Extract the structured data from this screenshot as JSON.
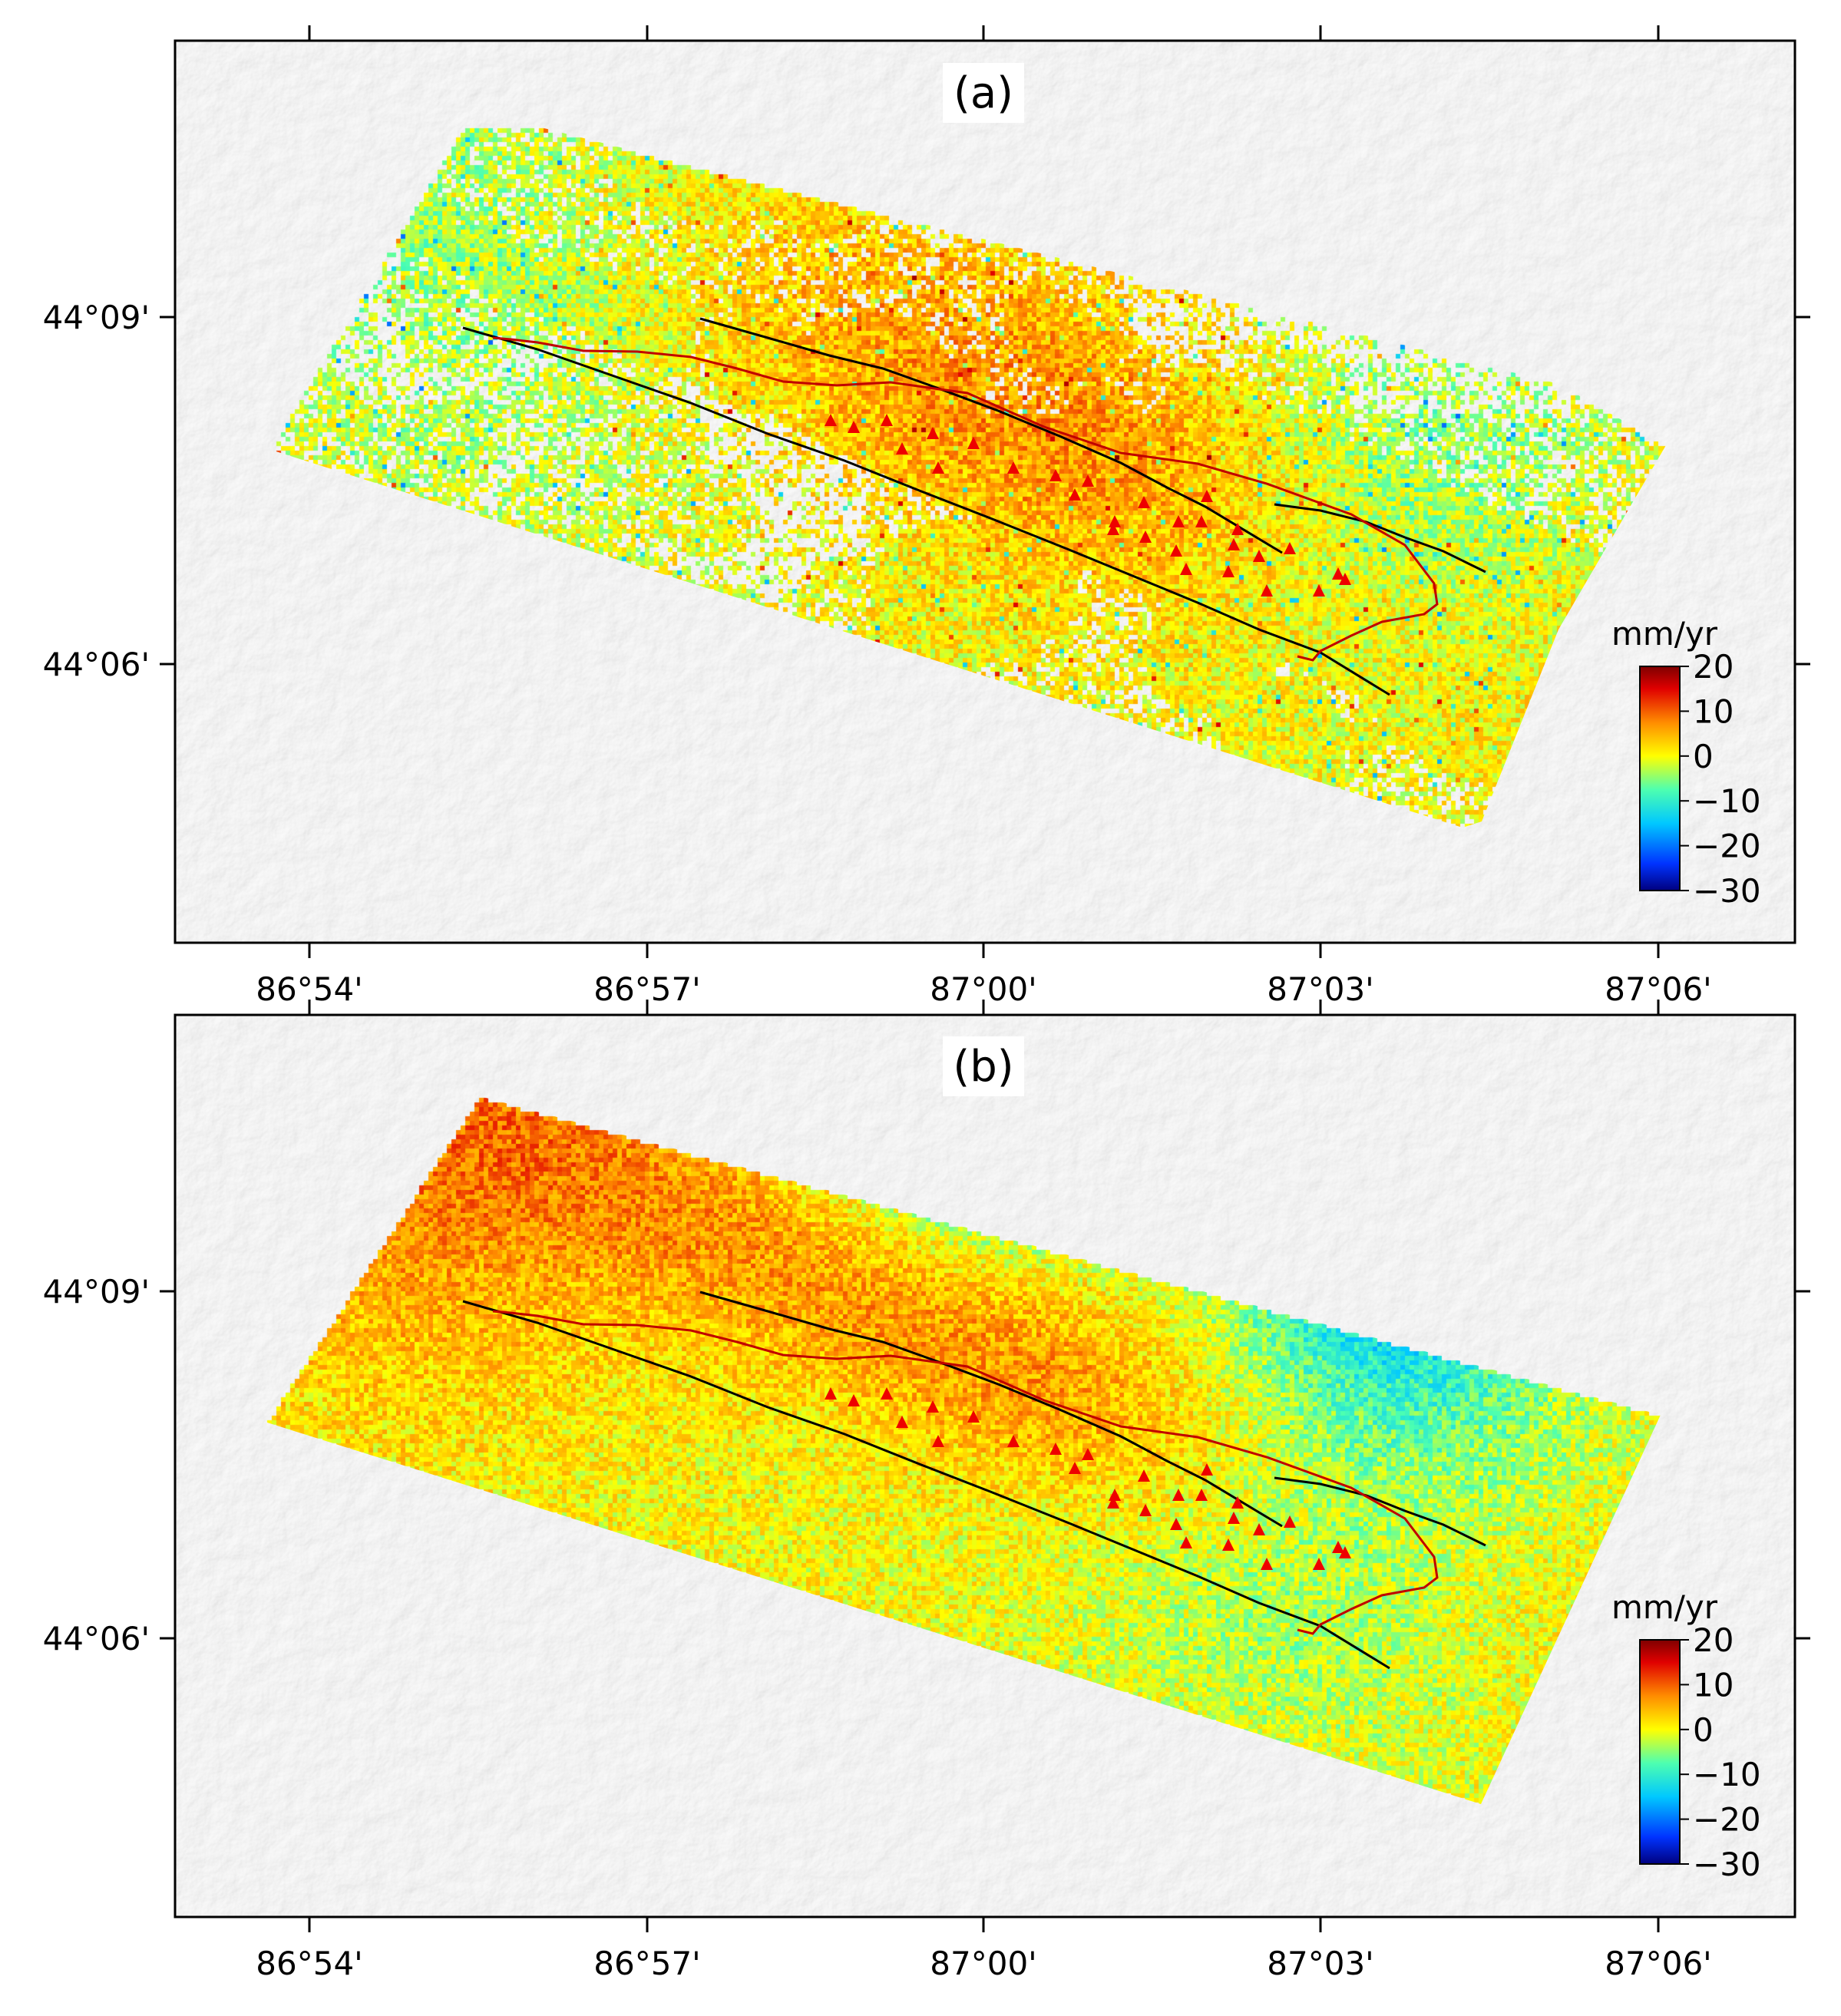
{
  "panels": [
    {
      "id": "a",
      "label": "(a)",
      "mode": "sparse"
    },
    {
      "id": "b",
      "label": "(b)",
      "mode": "dense"
    }
  ],
  "axes": {
    "x_ticks": [
      "86°54'",
      "86°57'",
      "87°00'",
      "87°03'",
      "87°06'"
    ],
    "y_ticks": [
      "44°09'",
      "44°06'"
    ]
  },
  "colorbar": {
    "unit": "mm/yr",
    "ticks": [
      "20",
      "10",
      "0",
      "−10",
      "−20",
      "−30"
    ],
    "range": [
      -30,
      20
    ],
    "colors": [
      "#00007f",
      "#0033ff",
      "#00c8ff",
      "#4dffb0",
      "#ffff00",
      "#ff8c00",
      "#e00000",
      "#7f0000"
    ]
  },
  "colors": {
    "hillshade": "#eeeeee",
    "fault_red": "#c00000",
    "fault_black": "#000000",
    "triangle": "#ee0000"
  },
  "marker_icon": "triangle-marker-icon"
}
